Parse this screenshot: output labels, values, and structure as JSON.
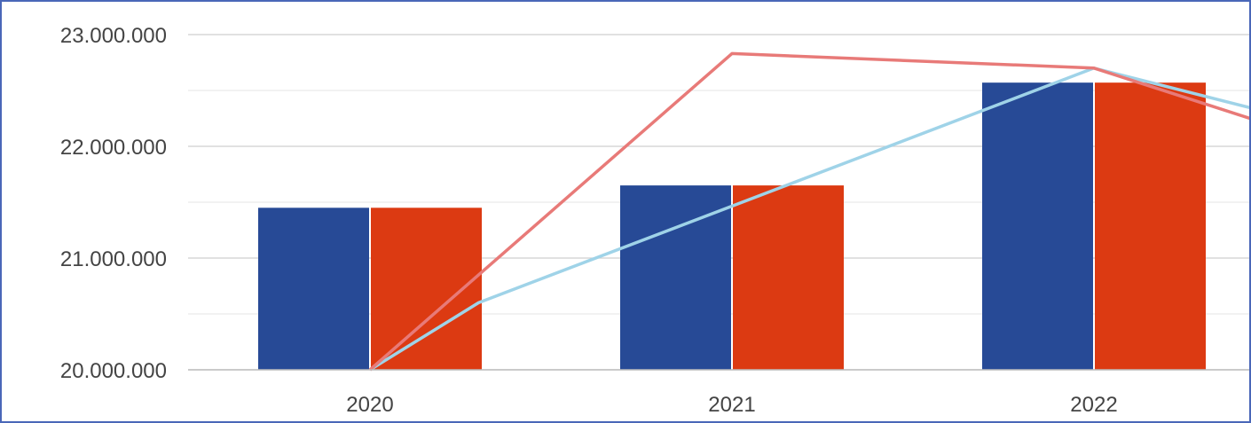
{
  "chart_data": {
    "type": "bar",
    "categories": [
      "2020",
      "2021",
      "2022"
    ],
    "series": [
      {
        "kind": "bar",
        "color": "#274a96",
        "values": [
          21450000,
          21650000,
          22570000
        ]
      },
      {
        "kind": "bar",
        "color": "#dc3a12",
        "values": [
          21450000,
          21650000,
          22570000
        ]
      },
      {
        "kind": "line",
        "color": "#e87a78",
        "x": [
          2020,
          2021,
          2022,
          2022.45
        ],
        "values": [
          20000000,
          22830000,
          22700000,
          22230000
        ]
      },
      {
        "kind": "line",
        "color": "#9fd3e8",
        "x": [
          2020,
          2020.3,
          2022,
          2022.45
        ],
        "values": [
          20000000,
          20600000,
          22700000,
          22330000
        ]
      }
    ],
    "yticks": [
      "20.000.000",
      "21.000.000",
      "22.000.000",
      "23.000.000"
    ],
    "ylim": [
      20000000,
      23000000
    ],
    "grid": true,
    "xlabel": "",
    "ylabel": ""
  }
}
